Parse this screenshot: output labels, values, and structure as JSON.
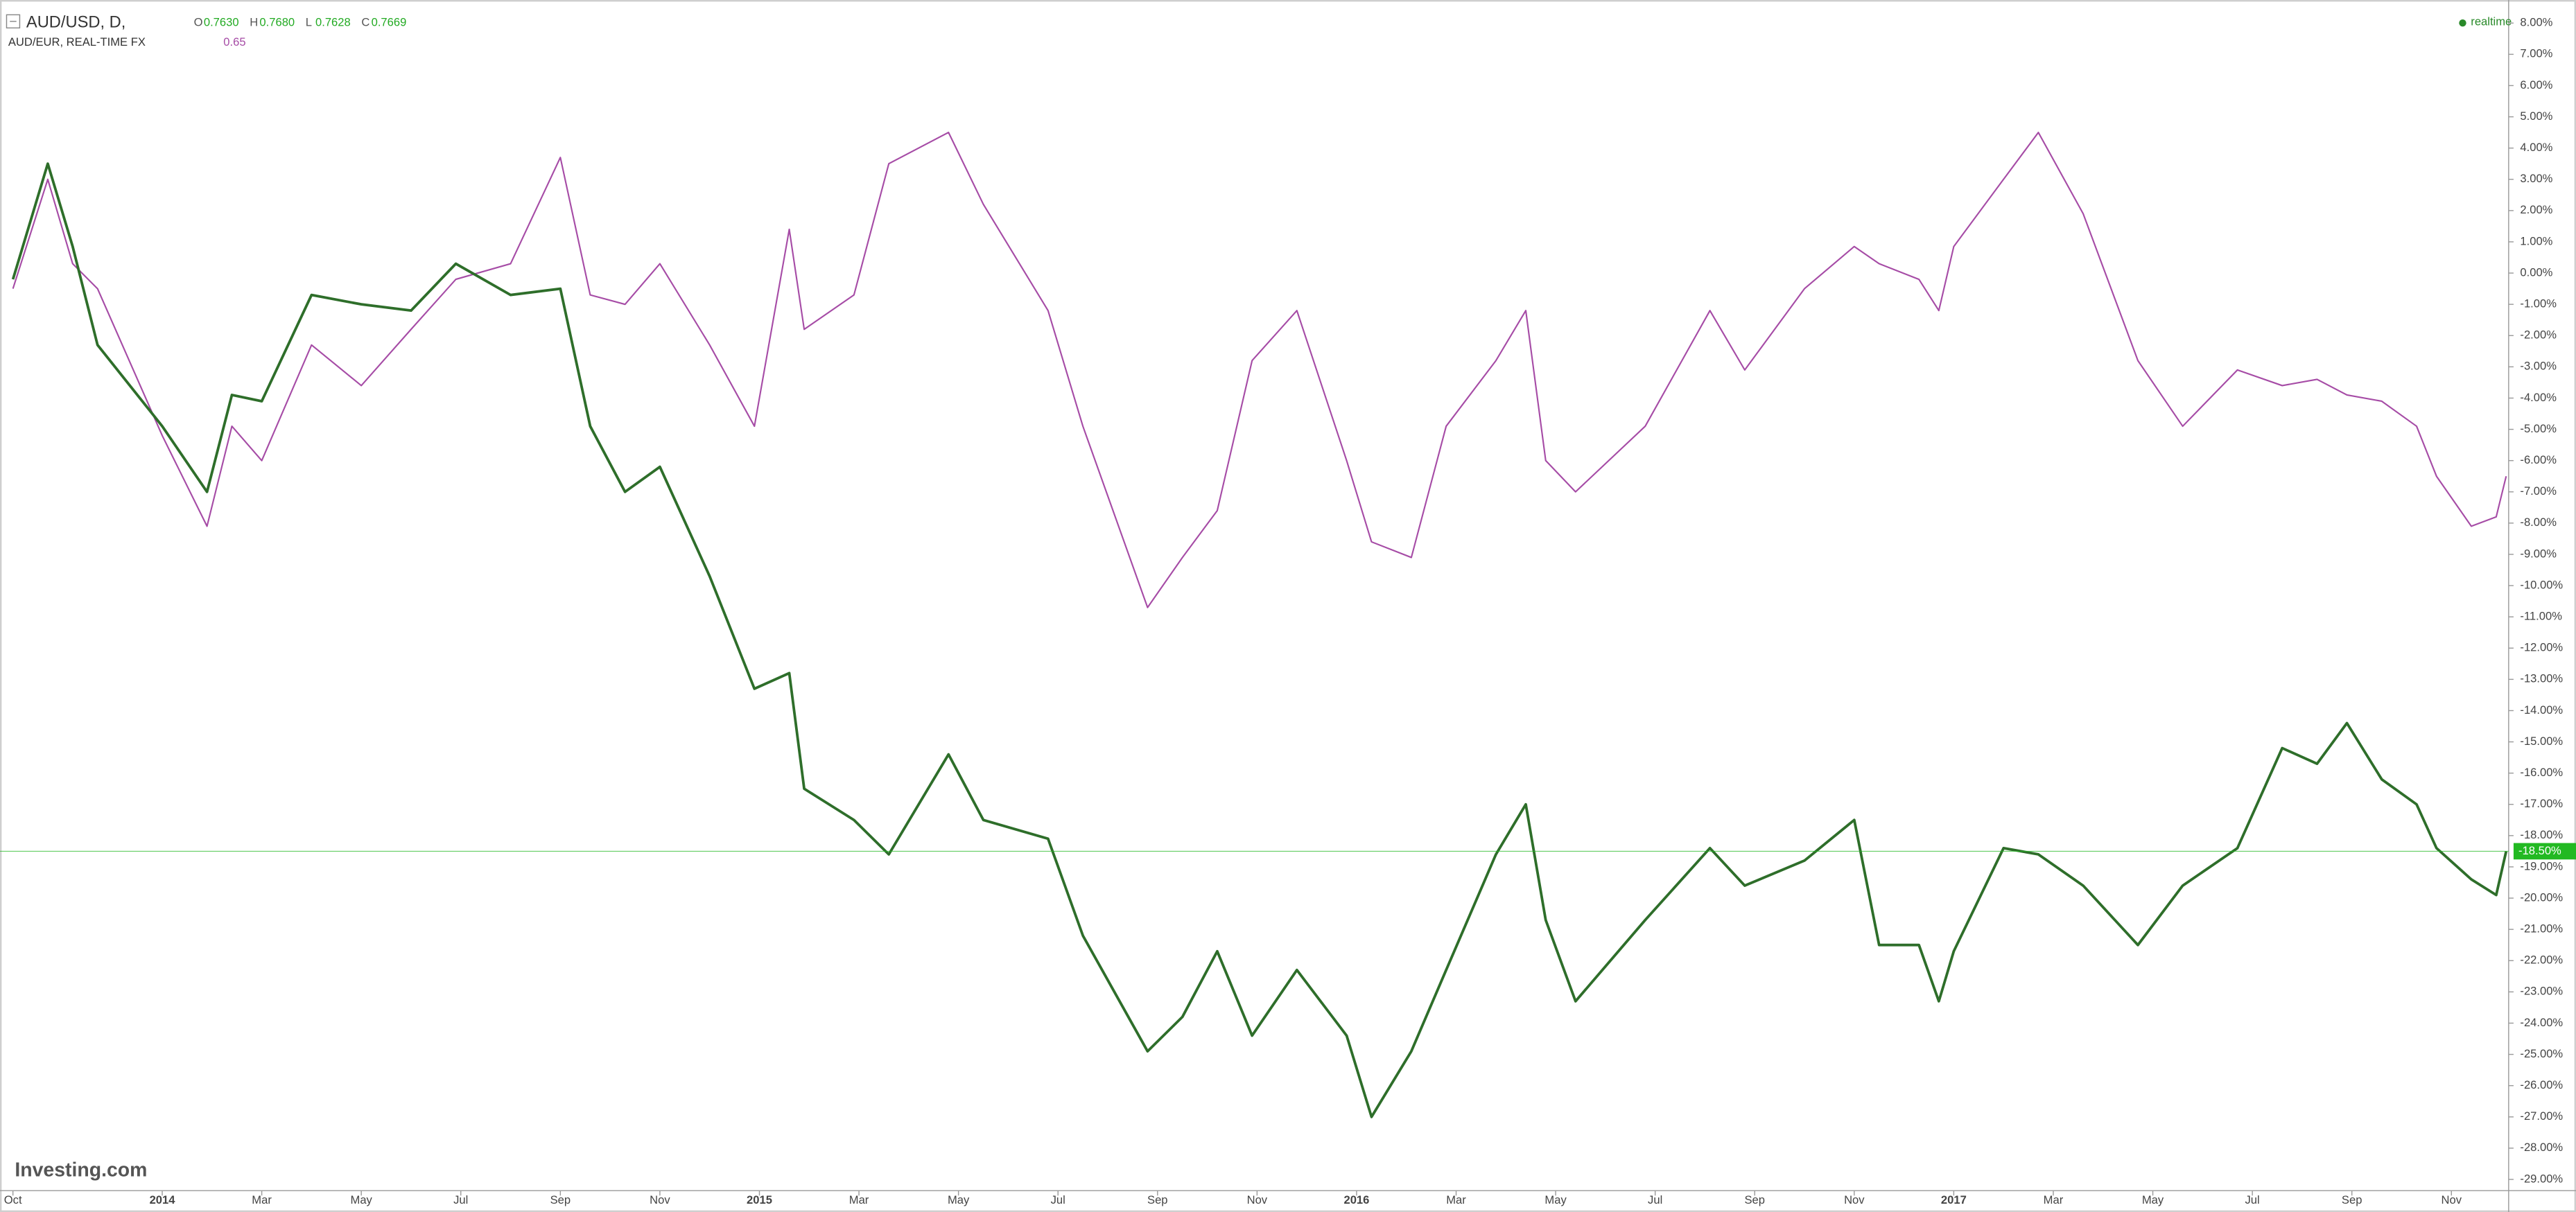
{
  "header": {
    "symbol": "AUD/USD, D,",
    "ohlc": [
      [
        "O",
        "0.7630"
      ],
      [
        "H",
        "0.7680"
      ],
      [
        "L",
        "0.7628"
      ],
      [
        "C",
        "0.7669"
      ]
    ],
    "compare_symbol": "AUD/EUR, REAL-TIME FX",
    "compare_value": "0.65",
    "status": "realtime",
    "brand": "Investing.com"
  },
  "chart_data": {
    "type": "line",
    "x": [
      0,
      0.7,
      1.2,
      1.7,
      3.0,
      3.9,
      4.4,
      5.0,
      6.0,
      7.0,
      8.0,
      8.9,
      10.0,
      11.0,
      11.6,
      12.3,
      13.0,
      14.0,
      14.9,
      15.6,
      15.9,
      16.9,
      17.6,
      18.8,
      19.5,
      20.8,
      21.5,
      22.8,
      23.5,
      24.2,
      24.9,
      25.8,
      26.8,
      27.3,
      28.1,
      28.8,
      29.8,
      30.4,
      30.8,
      31.4,
      32.8,
      34.1,
      34.8,
      36.0,
      37.0,
      37.5,
      38.3,
      38.7,
      39.0,
      40.0,
      40.7,
      41.6,
      42.7,
      43.6,
      44.7,
      45.6,
      46.3,
      46.9,
      47.6,
      48.3,
      48.7,
      49.4,
      49.9,
      50.1
    ],
    "series": [
      {
        "name": "AUD/USD",
        "color": "#2e6e2a",
        "values": [
          -0.2,
          3.5,
          0.85,
          -2.3,
          -4.9,
          -7.0,
          -3.9,
          -4.1,
          -0.7,
          -1.0,
          -1.2,
          0.3,
          -0.7,
          -0.5,
          -4.9,
          -7.0,
          -6.2,
          -9.7,
          -13.3,
          -12.8,
          -16.5,
          -17.5,
          -18.6,
          -15.4,
          -17.5,
          -18.1,
          -21.2,
          -24.9,
          -23.8,
          -21.7,
          -24.4,
          -22.3,
          -24.4,
          -27.0,
          -24.9,
          -22.3,
          -18.6,
          -17.0,
          -20.7,
          -23.3,
          -20.7,
          -18.4,
          -19.6,
          -18.8,
          -17.5,
          -21.5,
          -21.5,
          -23.3,
          -21.7,
          -18.4,
          -18.6,
          -19.6,
          -21.5,
          -19.6,
          -18.4,
          -15.2,
          -15.7,
          -14.4,
          -16.2,
          -17.0,
          -18.4,
          -19.4,
          -19.9,
          -18.5
        ]
      },
      {
        "name": "AUD/EUR",
        "color": "#a64ca6",
        "values": [
          -0.5,
          3.0,
          0.3,
          -0.5,
          -5.2,
          -8.1,
          -4.9,
          -6.0,
          -2.3,
          -3.6,
          -1.8,
          -0.2,
          0.3,
          3.7,
          -0.7,
          -1.0,
          0.3,
          -2.3,
          -4.9,
          1.4,
          -1.8,
          -0.7,
          3.5,
          4.5,
          2.2,
          -1.2,
          -4.9,
          -10.7,
          -9.1,
          -7.6,
          -2.8,
          -1.2,
          -6.0,
          -8.6,
          -9.1,
          -4.9,
          -2.8,
          -1.2,
          -6.0,
          -7.0,
          -4.9,
          -1.2,
          -3.1,
          -0.5,
          0.85,
          0.3,
          -0.2,
          -1.2,
          0.85,
          3.0,
          4.5,
          1.9,
          -2.8,
          -4.9,
          -3.1,
          -3.6,
          -3.4,
          -3.9,
          -4.1,
          -4.9,
          -6.5,
          -8.1,
          -7.8,
          -6.5
        ]
      }
    ],
    "current_marker": {
      "value": -18.5,
      "label": "-18.50%",
      "color": "#22b922"
    },
    "xlim": [
      -0.26,
      50.15
    ],
    "xticks": [
      {
        "value": 0,
        "label": "Oct"
      },
      {
        "value": 3,
        "label": "2014"
      },
      {
        "value": 5,
        "label": "Mar"
      },
      {
        "value": 7,
        "label": "May"
      },
      {
        "value": 9,
        "label": "Jul"
      },
      {
        "value": 11,
        "label": "Sep"
      },
      {
        "value": 13,
        "label": "Nov"
      },
      {
        "value": 15,
        "label": "2015"
      },
      {
        "value": 17,
        "label": "Mar"
      },
      {
        "value": 19,
        "label": "May"
      },
      {
        "value": 21,
        "label": "Jul"
      },
      {
        "value": 23,
        "label": "Sep"
      },
      {
        "value": 25,
        "label": "Nov"
      },
      {
        "value": 27,
        "label": "2016"
      },
      {
        "value": 29,
        "label": "Mar"
      },
      {
        "value": 31,
        "label": "May"
      },
      {
        "value": 33,
        "label": "Jul"
      },
      {
        "value": 35,
        "label": "Sep"
      },
      {
        "value": 37,
        "label": "Nov"
      },
      {
        "value": 39,
        "label": "2017"
      },
      {
        "value": 41,
        "label": "Mar"
      },
      {
        "value": 43,
        "label": "May"
      },
      {
        "value": 45,
        "label": "Jul"
      },
      {
        "value": 47,
        "label": "Sep"
      },
      {
        "value": 49,
        "label": "Nov"
      }
    ],
    "ylim": [
      -29.36,
      8.58
    ],
    "yticks": [
      {
        "value": 8,
        "label": "8.00%"
      },
      {
        "value": 7,
        "label": "7.00%"
      },
      {
        "value": 6,
        "label": "6.00%"
      },
      {
        "value": 5,
        "label": "5.00%"
      },
      {
        "value": 4,
        "label": "4.00%"
      },
      {
        "value": 3,
        "label": "3.00%"
      },
      {
        "value": 2,
        "label": "2.00%"
      },
      {
        "value": 1,
        "label": "1.00%"
      },
      {
        "value": 0,
        "label": "0.00%"
      },
      {
        "value": -1,
        "label": "-1.00%"
      },
      {
        "value": -2,
        "label": "-2.00%"
      },
      {
        "value": -3,
        "label": "-3.00%"
      },
      {
        "value": -4,
        "label": "-4.00%"
      },
      {
        "value": -5,
        "label": "-5.00%"
      },
      {
        "value": -6,
        "label": "-6.00%"
      },
      {
        "value": -7,
        "label": "-7.00%"
      },
      {
        "value": -8,
        "label": "-8.00%"
      },
      {
        "value": -9,
        "label": "-9.00%"
      },
      {
        "value": -10,
        "label": "-10.00%"
      },
      {
        "value": -11,
        "label": "-11.00%"
      },
      {
        "value": -12,
        "label": "-12.00%"
      },
      {
        "value": -13,
        "label": "-13.00%"
      },
      {
        "value": -14,
        "label": "-14.00%"
      },
      {
        "value": -15,
        "label": "-15.00%"
      },
      {
        "value": -16,
        "label": "-16.00%"
      },
      {
        "value": -17,
        "label": "-17.00%"
      },
      {
        "value": -18,
        "label": "-18.00%"
      },
      {
        "value": -19,
        "label": "-19.00%"
      },
      {
        "value": -20,
        "label": "-20.00%"
      },
      {
        "value": -21,
        "label": "-21.00%"
      },
      {
        "value": -22,
        "label": "-22.00%"
      },
      {
        "value": -23,
        "label": "-23.00%"
      },
      {
        "value": -24,
        "label": "-24.00%"
      },
      {
        "value": -25,
        "label": "-25.00%"
      },
      {
        "value": -26,
        "label": "-26.00%"
      },
      {
        "value": -27,
        "label": "-27.00%"
      },
      {
        "value": -28,
        "label": "-28.00%"
      },
      {
        "value": -29,
        "label": "-29.00%"
      }
    ],
    "grid": false
  }
}
